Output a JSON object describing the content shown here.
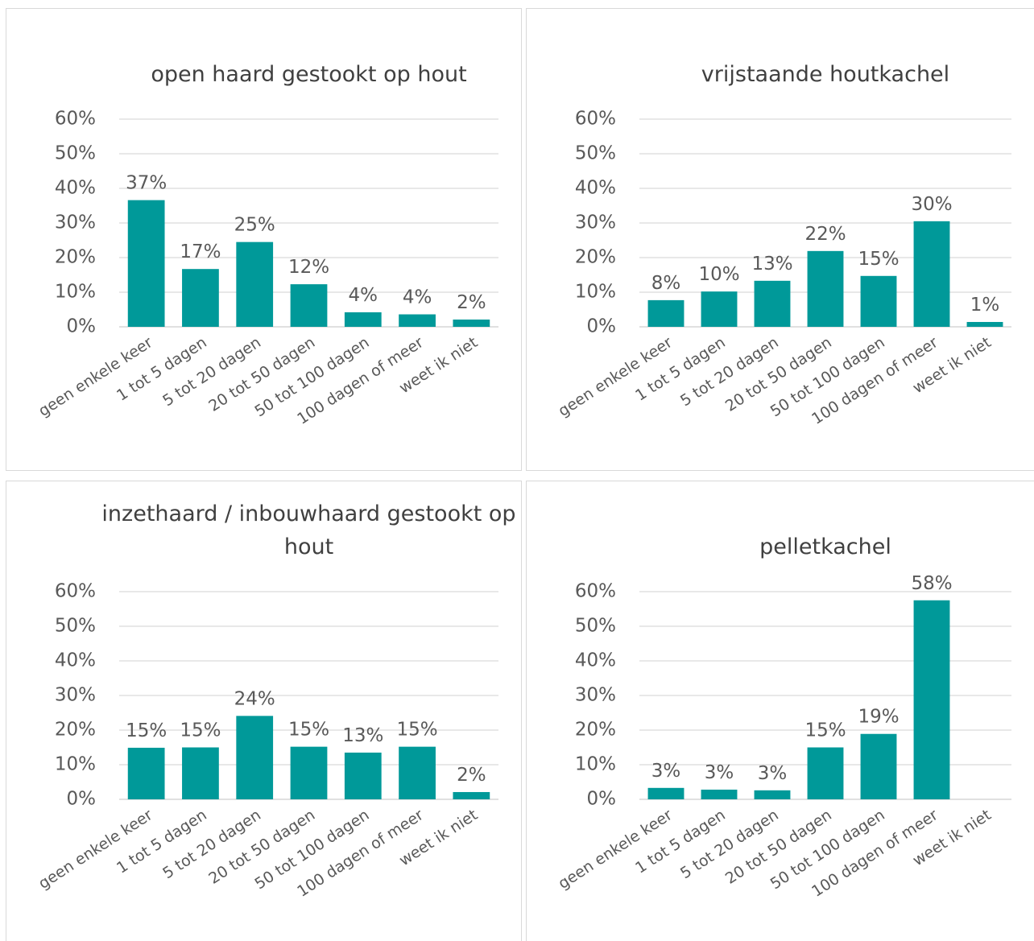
{
  "chart_data": [
    {
      "type": "bar",
      "title": "open haard gestookt op hout",
      "color": "#009999",
      "categories": [
        "geen enkele keer",
        "1 tot 5 dagen",
        "5 tot 20 dagen",
        "20 tot 50 dagen",
        "50 tot 100 dagen",
        "100 dagen of meer",
        "weet ik niet"
      ],
      "values": [
        36.6,
        16.7,
        24.5,
        12.3,
        4.2,
        3.6,
        2.1
      ],
      "value_labels": [
        "37%",
        "17%",
        "25%",
        "12%",
        "4%",
        "4%",
        "2%"
      ],
      "ylim": [
        0,
        60
      ],
      "yticks": [
        {
          "value": 0,
          "label": "0%"
        },
        {
          "value": 10,
          "label": "10%"
        },
        {
          "value": 20,
          "label": "20%"
        },
        {
          "value": 30,
          "label": "30%"
        },
        {
          "value": 40,
          "label": "40%"
        },
        {
          "value": 50,
          "label": "50%"
        },
        {
          "value": 60,
          "label": "60%"
        }
      ],
      "grid": true
    },
    {
      "type": "bar",
      "title": "vrijstaande houtkachel",
      "color": "#009999",
      "categories": [
        "geen enkele keer",
        "1 tot 5 dagen",
        "5 tot 20 dagen",
        "20 tot 50 dagen",
        "50 tot 100 dagen",
        "100 dagen of meer",
        "weet ik niet"
      ],
      "values": [
        7.7,
        10.2,
        13.3,
        21.9,
        14.7,
        30.5,
        1.4
      ],
      "value_labels": [
        "8%",
        "10%",
        "13%",
        "22%",
        "15%",
        "30%",
        "1%"
      ],
      "ylim": [
        0,
        60
      ],
      "yticks": [
        {
          "value": 0,
          "label": "0%"
        },
        {
          "value": 10,
          "label": "10%"
        },
        {
          "value": 20,
          "label": "20%"
        },
        {
          "value": 30,
          "label": "30%"
        },
        {
          "value": 40,
          "label": "40%"
        },
        {
          "value": 50,
          "label": "50%"
        },
        {
          "value": 60,
          "label": "60%"
        }
      ],
      "grid": true
    },
    {
      "type": "bar",
      "title": "inzethaard / inbouwhaard gestookt op hout",
      "color": "#009999",
      "categories": [
        "geen enkele keer",
        "1 tot 5 dagen",
        "5 tot 20 dagen",
        "20 tot 50 dagen",
        "50 tot 100 dagen",
        "100 dagen of meer",
        "weet ik niet"
      ],
      "values": [
        14.9,
        15.0,
        24.1,
        15.2,
        13.5,
        15.2,
        2.1
      ],
      "value_labels": [
        "15%",
        "15%",
        "24%",
        "15%",
        "13%",
        "15%",
        "2%"
      ],
      "ylim": [
        0,
        60
      ],
      "yticks": [
        {
          "value": 0,
          "label": "0%"
        },
        {
          "value": 10,
          "label": "10%"
        },
        {
          "value": 20,
          "label": "20%"
        },
        {
          "value": 30,
          "label": "30%"
        },
        {
          "value": 40,
          "label": "40%"
        },
        {
          "value": 50,
          "label": "50%"
        },
        {
          "value": 60,
          "label": "60%"
        }
      ],
      "grid": true
    },
    {
      "type": "bar",
      "title": "pelletkachel",
      "color": "#009999",
      "categories": [
        "geen enkele keer",
        "1 tot 5 dagen",
        "5 tot 20 dagen",
        "20 tot 50 dagen",
        "50 tot 100 dagen",
        "100 dagen of meer",
        "weet ik niet"
      ],
      "values": [
        3.3,
        2.8,
        2.6,
        15.0,
        18.9,
        57.5,
        null
      ],
      "value_labels": [
        "3%",
        "3%",
        "3%",
        "15%",
        "19%",
        "58%",
        null
      ],
      "ylim": [
        0,
        60
      ],
      "yticks": [
        {
          "value": 0,
          "label": "0%"
        },
        {
          "value": 10,
          "label": "10%"
        },
        {
          "value": 20,
          "label": "20%"
        },
        {
          "value": 30,
          "label": "30%"
        },
        {
          "value": 40,
          "label": "40%"
        },
        {
          "value": 50,
          "label": "50%"
        },
        {
          "value": 60,
          "label": "60%"
        }
      ],
      "grid": true
    }
  ]
}
